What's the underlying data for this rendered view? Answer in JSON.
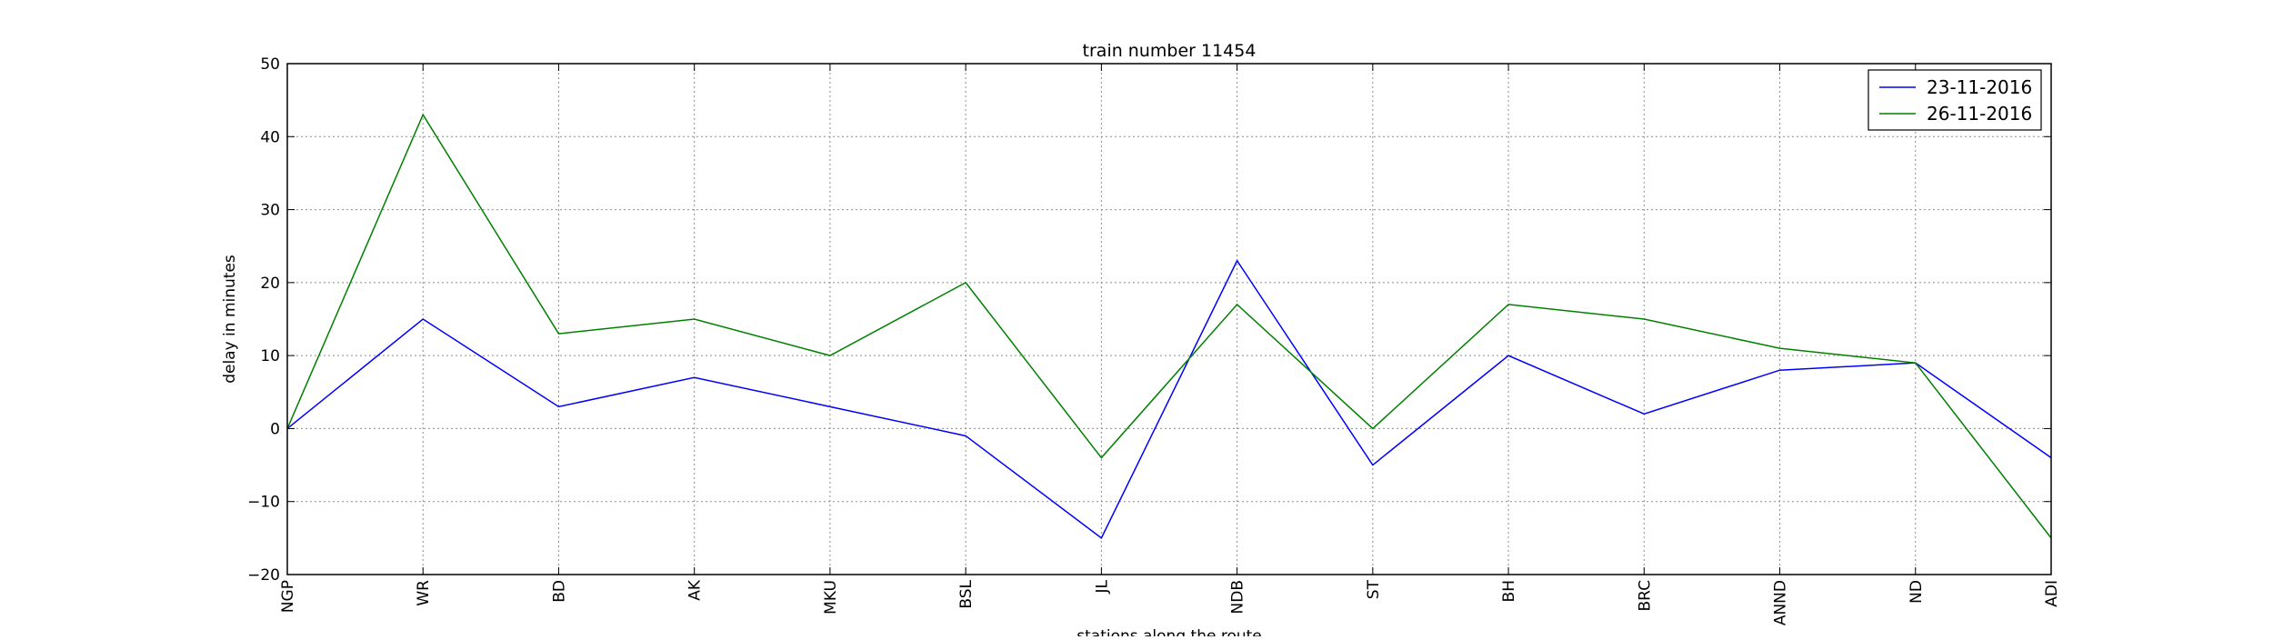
{
  "chart_data": {
    "type": "line",
    "title": "train number 11454",
    "xlabel": "stations along the route",
    "ylabel": "delay in minutes",
    "categories": [
      "NGP",
      "WR",
      "BD",
      "AK",
      "MKU",
      "BSL",
      "JL",
      "NDB",
      "ST",
      "BH",
      "BRC",
      "ANND",
      "ND",
      "ADI"
    ],
    "ylim": [
      -20,
      50
    ],
    "yticks": [
      -20,
      -10,
      0,
      10,
      20,
      30,
      40,
      50
    ],
    "ytick_labels": [
      "−20",
      "−10",
      "0",
      "10",
      "20",
      "30",
      "40",
      "50"
    ],
    "grid": true,
    "legend_position": "top-right",
    "series": [
      {
        "name": "23-11-2016",
        "color": "#0000ff",
        "values": [
          0,
          15,
          3,
          7,
          3,
          -1,
          -15,
          23,
          -5,
          10,
          2,
          8,
          9,
          -4
        ]
      },
      {
        "name": "26-11-2016",
        "color": "#008000",
        "values": [
          0,
          43,
          13,
          15,
          10,
          20,
          -4,
          17,
          0,
          17,
          15,
          11,
          9,
          -15
        ]
      }
    ]
  }
}
